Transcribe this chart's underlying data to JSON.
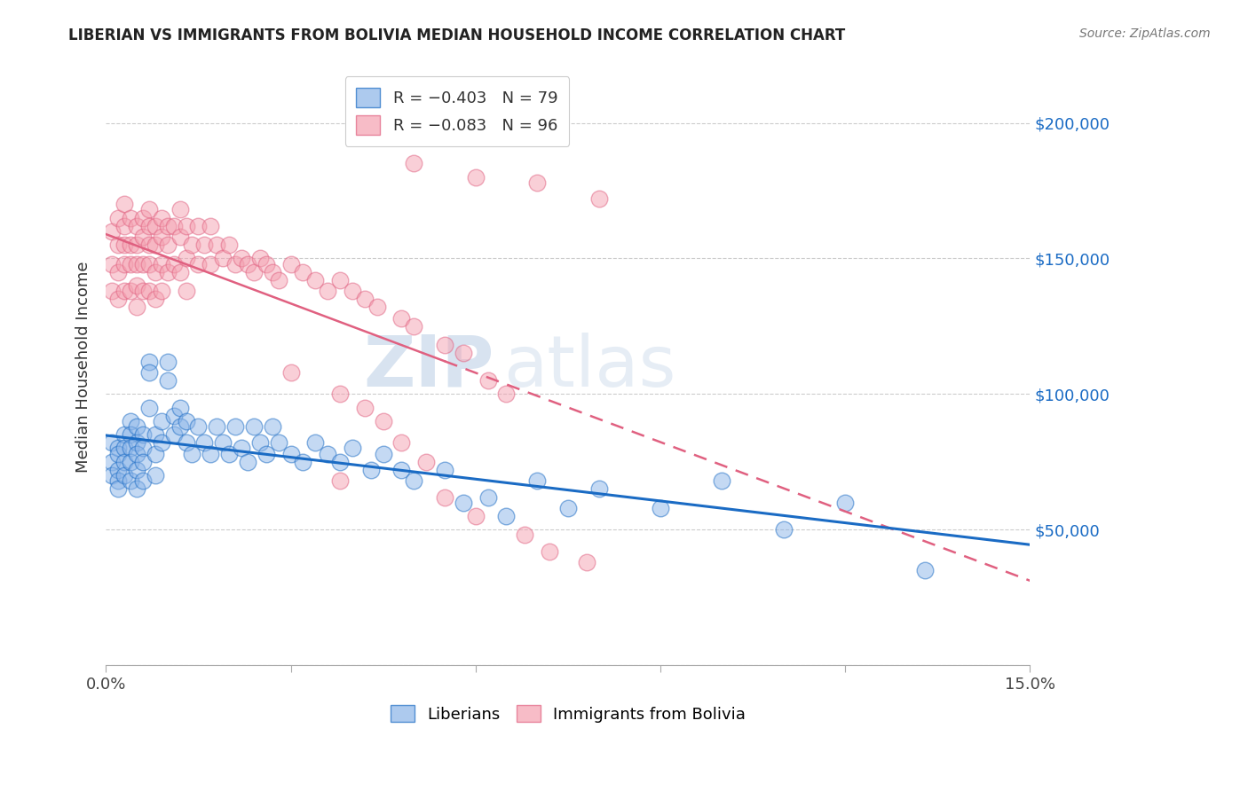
{
  "title": "LIBERIAN VS IMMIGRANTS FROM BOLIVIA MEDIAN HOUSEHOLD INCOME CORRELATION CHART",
  "source": "Source: ZipAtlas.com",
  "ylabel": "Median Household Income",
  "xlim": [
    0.0,
    0.15
  ],
  "ylim": [
    0,
    220000
  ],
  "yticks": [
    0,
    50000,
    100000,
    150000,
    200000
  ],
  "ytick_labels": [
    "",
    "$50,000",
    "$100,000",
    "$150,000",
    "$200,000"
  ],
  "legend_r1": "R = -0.403",
  "legend_n1": "N = 79",
  "legend_r2": "R = -0.083",
  "legend_n2": "N = 96",
  "color_blue": "#8ab4e8",
  "color_pink": "#f4a0b0",
  "color_line_blue": "#1a6bc4",
  "color_line_pink": "#e06080",
  "watermark_zip": "ZIP",
  "watermark_atlas": "atlas",
  "liberian_x": [
    0.001,
    0.001,
    0.001,
    0.002,
    0.002,
    0.002,
    0.002,
    0.002,
    0.003,
    0.003,
    0.003,
    0.003,
    0.004,
    0.004,
    0.004,
    0.004,
    0.004,
    0.005,
    0.005,
    0.005,
    0.005,
    0.005,
    0.006,
    0.006,
    0.006,
    0.006,
    0.007,
    0.007,
    0.007,
    0.008,
    0.008,
    0.008,
    0.009,
    0.009,
    0.01,
    0.01,
    0.011,
    0.011,
    0.012,
    0.012,
    0.013,
    0.013,
    0.014,
    0.015,
    0.016,
    0.017,
    0.018,
    0.019,
    0.02,
    0.021,
    0.022,
    0.023,
    0.024,
    0.025,
    0.026,
    0.027,
    0.028,
    0.03,
    0.032,
    0.034,
    0.036,
    0.038,
    0.04,
    0.043,
    0.045,
    0.048,
    0.05,
    0.055,
    0.058,
    0.062,
    0.065,
    0.07,
    0.075,
    0.08,
    0.09,
    0.1,
    0.11,
    0.12,
    0.133
  ],
  "liberian_y": [
    82000,
    75000,
    70000,
    80000,
    78000,
    72000,
    68000,
    65000,
    85000,
    80000,
    75000,
    70000,
    90000,
    85000,
    80000,
    75000,
    68000,
    88000,
    82000,
    78000,
    72000,
    65000,
    85000,
    80000,
    75000,
    68000,
    112000,
    108000,
    95000,
    85000,
    78000,
    70000,
    90000,
    82000,
    112000,
    105000,
    92000,
    85000,
    95000,
    88000,
    90000,
    82000,
    78000,
    88000,
    82000,
    78000,
    88000,
    82000,
    78000,
    88000,
    80000,
    75000,
    88000,
    82000,
    78000,
    88000,
    82000,
    78000,
    75000,
    82000,
    78000,
    75000,
    80000,
    72000,
    78000,
    72000,
    68000,
    72000,
    60000,
    62000,
    55000,
    68000,
    58000,
    65000,
    58000,
    68000,
    50000,
    60000,
    35000
  ],
  "bolivia_x": [
    0.001,
    0.001,
    0.001,
    0.002,
    0.002,
    0.002,
    0.002,
    0.003,
    0.003,
    0.003,
    0.003,
    0.003,
    0.004,
    0.004,
    0.004,
    0.004,
    0.005,
    0.005,
    0.005,
    0.005,
    0.005,
    0.006,
    0.006,
    0.006,
    0.006,
    0.007,
    0.007,
    0.007,
    0.007,
    0.007,
    0.008,
    0.008,
    0.008,
    0.008,
    0.009,
    0.009,
    0.009,
    0.009,
    0.01,
    0.01,
    0.01,
    0.011,
    0.011,
    0.012,
    0.012,
    0.012,
    0.013,
    0.013,
    0.013,
    0.014,
    0.015,
    0.015,
    0.016,
    0.017,
    0.017,
    0.018,
    0.019,
    0.02,
    0.021,
    0.022,
    0.023,
    0.024,
    0.025,
    0.026,
    0.027,
    0.028,
    0.03,
    0.032,
    0.034,
    0.036,
    0.038,
    0.04,
    0.042,
    0.044,
    0.048,
    0.05,
    0.055,
    0.058,
    0.062,
    0.065,
    0.03,
    0.038,
    0.042,
    0.045,
    0.048,
    0.052,
    0.038,
    0.055,
    0.06,
    0.068,
    0.072,
    0.078,
    0.05,
    0.06,
    0.07,
    0.08
  ],
  "bolivia_y": [
    160000,
    148000,
    138000,
    165000,
    155000,
    145000,
    135000,
    170000,
    162000,
    155000,
    148000,
    138000,
    165000,
    155000,
    148000,
    138000,
    162000,
    155000,
    148000,
    140000,
    132000,
    165000,
    158000,
    148000,
    138000,
    168000,
    162000,
    155000,
    148000,
    138000,
    162000,
    155000,
    145000,
    135000,
    165000,
    158000,
    148000,
    138000,
    162000,
    155000,
    145000,
    162000,
    148000,
    168000,
    158000,
    145000,
    162000,
    150000,
    138000,
    155000,
    162000,
    148000,
    155000,
    162000,
    148000,
    155000,
    150000,
    155000,
    148000,
    150000,
    148000,
    145000,
    150000,
    148000,
    145000,
    142000,
    148000,
    145000,
    142000,
    138000,
    142000,
    138000,
    135000,
    132000,
    128000,
    125000,
    118000,
    115000,
    105000,
    100000,
    108000,
    100000,
    95000,
    90000,
    82000,
    75000,
    68000,
    62000,
    55000,
    48000,
    42000,
    38000,
    185000,
    180000,
    178000,
    172000
  ]
}
